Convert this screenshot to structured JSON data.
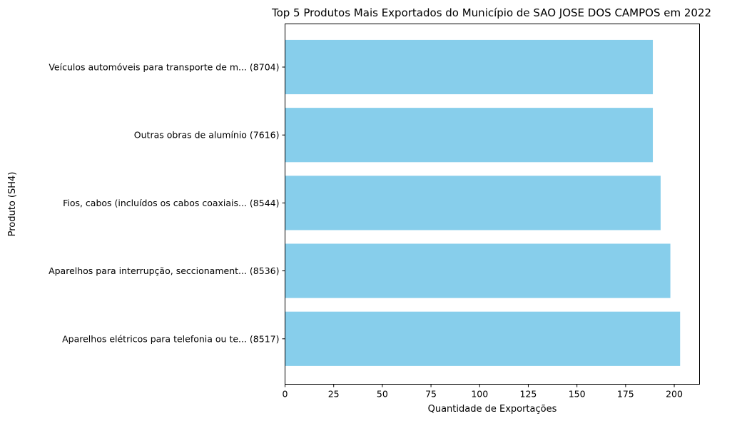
{
  "chart_data": {
    "type": "bar",
    "orientation": "horizontal",
    "title": "Top 5 Produtos Mais Exportados do Município de SAO JOSE DOS CAMPOS em 2022",
    "xlabel": "Quantidade de Exportações",
    "ylabel": "Produto (SH4)",
    "categories": [
      "Veículos automóveis para transporte de m... (8704)",
      "Outras obras de alumínio (7616)",
      "Fios, cabos (incluídos os cabos coaxiais... (8544)",
      "Aparelhos para interrupção, seccionament... (8536)",
      "Aparelhos elétricos para telefonia ou te... (8517)"
    ],
    "values": [
      189,
      189,
      193,
      198,
      203
    ],
    "xlim": [
      0,
      213
    ],
    "xticks": [
      0,
      25,
      50,
      75,
      100,
      125,
      150,
      175,
      200
    ],
    "bar_color": "#87ceeb",
    "grid": false
  }
}
